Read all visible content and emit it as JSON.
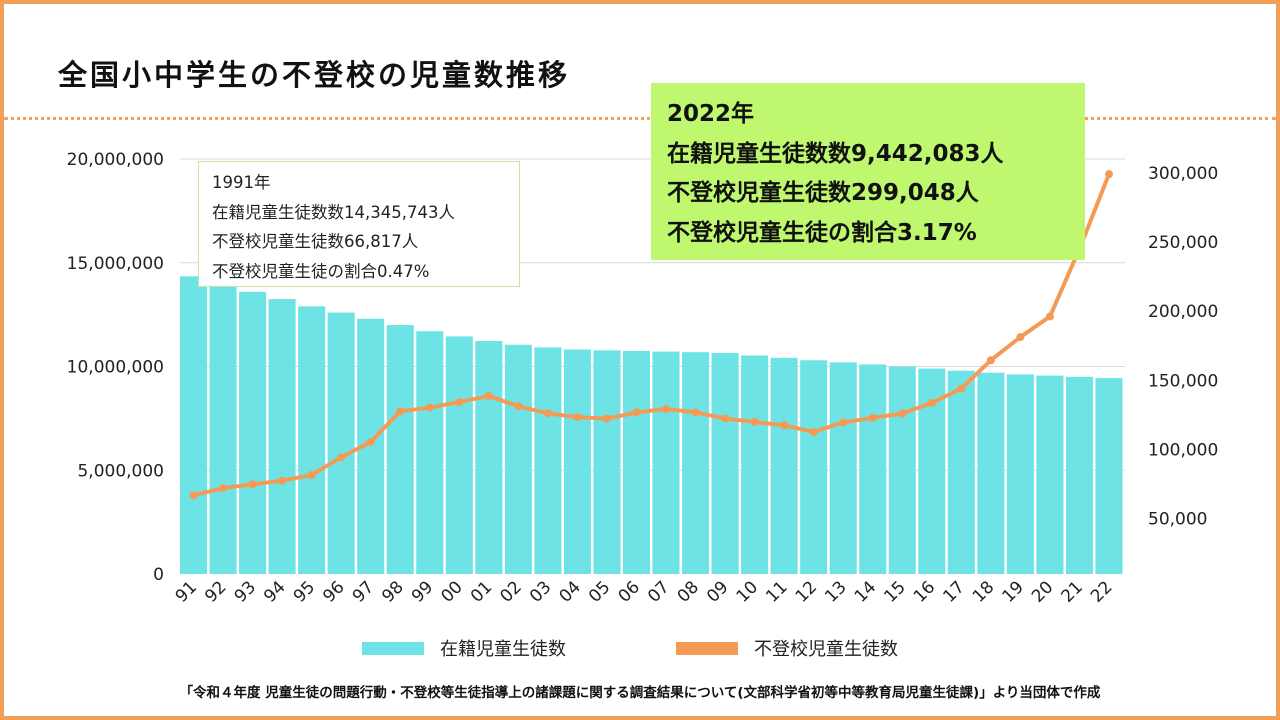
{
  "title": "全国小中学生の不登校の児童数推移",
  "colors": {
    "frame": "#f5a05a",
    "bars": "#6de3e6",
    "line": "#f59a55",
    "highlight": "#bff76f"
  },
  "annotation_1991": {
    "year": "1991年",
    "enrolled": "在籍児童生徒数数14,345,743人",
    "absent": "不登校児童生徒数66,817人",
    "ratio": "不登校児童生徒の割合0.47%"
  },
  "annotation_2022": {
    "year": "2022年",
    "enrolled": "在籍児童生徒数数9,442,083人",
    "absent": "不登校児童生徒数299,048人",
    "ratio": "不登校児童生徒の割合3.17%"
  },
  "legend": {
    "bars": "在籍児童生徒数",
    "line": "不登校児童生徒数"
  },
  "source": "「令和４年度 児童生徒の問題行動・不登校等生徒指導上の諸課題に関する調査結果について(文部科学省初等中等教育局児童生徒課)」より当団体で作成",
  "chart_data": {
    "type": "bar+line",
    "categories": [
      "91",
      "92",
      "93",
      "94",
      "95",
      "96",
      "97",
      "98",
      "99",
      "00",
      "01",
      "02",
      "03",
      "04",
      "05",
      "06",
      "07",
      "08",
      "09",
      "10",
      "11",
      "12",
      "13",
      "14",
      "15",
      "16",
      "17",
      "18",
      "19",
      "20",
      "21",
      "22"
    ],
    "series": [
      {
        "name": "在籍児童生徒数",
        "type": "bar",
        "axis": "left",
        "values": [
          14345743,
          13950000,
          13600000,
          13250000,
          12900000,
          12600000,
          12300000,
          12000000,
          11700000,
          11450000,
          11230000,
          11050000,
          10920000,
          10820000,
          10780000,
          10750000,
          10720000,
          10690000,
          10650000,
          10530000,
          10420000,
          10300000,
          10200000,
          10100000,
          10000000,
          9900000,
          9800000,
          9700000,
          9620000,
          9560000,
          9500000,
          9442083
        ]
      },
      {
        "name": "不登校児童生徒数",
        "type": "line",
        "axis": "right",
        "values": [
          66817,
          72131,
          74808,
          77449,
          81591,
          94351,
          105466,
          127692,
          130228,
          134286,
          138722,
          131252,
          126226,
          123358,
          122287,
          126890,
          129255,
          126805,
          122432,
          119891,
          117458,
          112689,
          119617,
          122897,
          125991,
          133683,
          144031,
          164528,
          181272,
          196127,
          244940,
          299048
        ]
      }
    ],
    "y_left": {
      "range": [
        0,
        20000000
      ],
      "ticks": [
        "0",
        "5,000,000",
        "10,000,000",
        "15,000,000",
        "20,000,000"
      ]
    },
    "y_right": {
      "range": [
        10000,
        310000
      ],
      "ticks": [
        "50,000",
        "100,000",
        "150,000",
        "200,000",
        "250,000",
        "300,000"
      ]
    },
    "grid": true,
    "legend_position": "bottom"
  }
}
